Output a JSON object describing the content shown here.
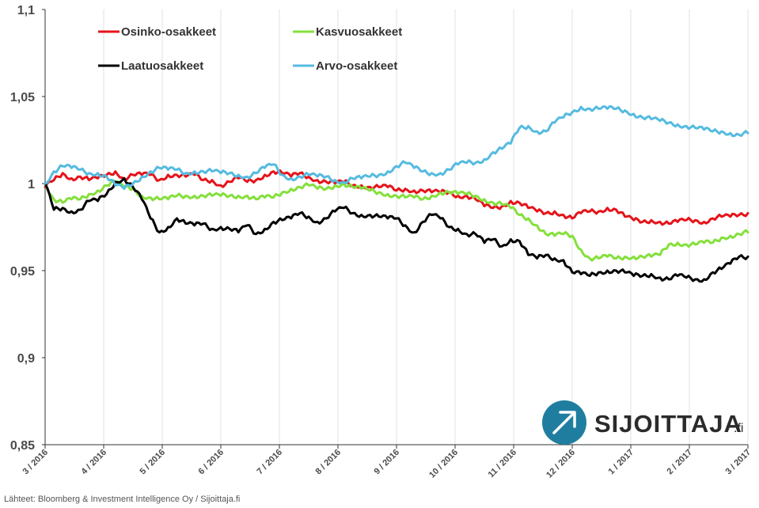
{
  "chart_data": {
    "type": "line",
    "title": "",
    "xlabel": "",
    "ylabel": "",
    "ylim": [
      0.85,
      1.1
    ],
    "y_ticks": [
      "1,1",
      "1,05",
      "1",
      "0,95",
      "0,9",
      "0,85"
    ],
    "y_tick_values": [
      1.1,
      1.05,
      1.0,
      0.95,
      0.9,
      0.85
    ],
    "x_ticks": [
      "3 / 2016",
      "4 / 2016",
      "5 / 2016",
      "6 / 2016",
      "7 / 2016",
      "8 / 2016",
      "9 / 2016",
      "10 / 2016",
      "11 / 2016",
      "12 / 2016",
      "1 / 2017",
      "2 / 2017",
      "3 / 2017"
    ],
    "x_tick_values": [
      0,
      1,
      2,
      3,
      4,
      5,
      6,
      7,
      8,
      9,
      10,
      11,
      12
    ],
    "xlim": [
      0,
      12
    ],
    "grid": "vertical",
    "legend_position": "top-left",
    "series": [
      {
        "name": "Osinko-osakkeet",
        "color": "#e5131a",
        "x": [
          0,
          0.15,
          0.3,
          0.45,
          0.6,
          0.75,
          0.9,
          1.05,
          1.2,
          1.35,
          1.5,
          1.65,
          1.8,
          1.95,
          2.1,
          2.25,
          2.4,
          2.55,
          2.7,
          2.85,
          3.0,
          3.15,
          3.3,
          3.45,
          3.6,
          3.75,
          3.9,
          4.05,
          4.2,
          4.35,
          4.5,
          4.65,
          4.8,
          4.95,
          5.1,
          5.25,
          5.4,
          5.55,
          5.7,
          5.85,
          6.0,
          6.15,
          6.3,
          6.45,
          6.6,
          6.75,
          6.9,
          7.05,
          7.2,
          7.35,
          7.5,
          7.65,
          7.8,
          7.95,
          8.1,
          8.25,
          8.4,
          8.55,
          8.7,
          8.85,
          9.0,
          9.15,
          9.3,
          9.45,
          9.6,
          9.75,
          9.9,
          10.05,
          10.2,
          10.35,
          10.5,
          10.65,
          10.8,
          10.95,
          11.1,
          11.25,
          11.4,
          11.55,
          11.7,
          11.85,
          12.0
        ],
        "values": [
          0.998,
          1.002,
          1.006,
          1.003,
          1.004,
          1.002,
          1.003,
          1.005,
          1.007,
          1.003,
          1.005,
          1.005,
          1.005,
          1.002,
          1.005,
          1.005,
          1.004,
          1.005,
          1.002,
          1.002,
          0.999,
          1.001,
          1.003,
          1.001,
          1.002,
          1.005,
          1.007,
          1.006,
          1.004,
          1.006,
          1.004,
          1.002,
          1.001,
          1.0,
          1.001,
          0.999,
          0.999,
          0.998,
          0.998,
          0.998,
          0.996,
          0.997,
          0.996,
          0.996,
          0.995,
          0.995,
          0.995,
          0.993,
          0.993,
          0.991,
          0.987,
          0.986,
          0.987,
          0.99,
          0.989,
          0.986,
          0.984,
          0.983,
          0.984,
          0.982,
          0.98,
          0.983,
          0.984,
          0.984,
          0.986,
          0.985,
          0.981,
          0.979,
          0.978,
          0.979,
          0.978,
          0.977,
          0.978,
          0.979,
          0.979,
          0.978,
          0.98,
          0.981,
          0.981,
          0.982,
          0.983
        ]
      },
      {
        "name": "Kasvuosakkeet",
        "color": "#84e03c",
        "x": [
          0,
          0.15,
          0.3,
          0.45,
          0.6,
          0.75,
          0.9,
          1.05,
          1.2,
          1.35,
          1.5,
          1.65,
          1.8,
          1.95,
          2.1,
          2.25,
          2.4,
          2.55,
          2.7,
          2.85,
          3.0,
          3.15,
          3.3,
          3.45,
          3.6,
          3.75,
          3.9,
          4.05,
          4.2,
          4.35,
          4.5,
          4.65,
          4.8,
          4.95,
          5.1,
          5.25,
          5.4,
          5.55,
          5.7,
          5.85,
          6.0,
          6.15,
          6.3,
          6.45,
          6.6,
          6.75,
          6.9,
          7.05,
          7.2,
          7.35,
          7.5,
          7.65,
          7.8,
          7.95,
          8.1,
          8.25,
          8.4,
          8.55,
          8.7,
          8.85,
          9.0,
          9.15,
          9.3,
          9.45,
          9.6,
          9.75,
          9.9,
          10.05,
          10.2,
          10.35,
          10.5,
          10.65,
          10.8,
          10.95,
          11.1,
          11.25,
          11.4,
          11.55,
          11.7,
          11.85,
          12.0
        ],
        "values": [
          1.0,
          0.991,
          0.989,
          0.991,
          0.991,
          0.994,
          0.996,
          0.999,
          1.001,
          0.998,
          0.997,
          0.993,
          0.992,
          0.991,
          0.991,
          0.993,
          0.993,
          0.993,
          0.993,
          0.993,
          0.993,
          0.993,
          0.993,
          0.993,
          0.991,
          0.992,
          0.992,
          0.995,
          0.997,
          0.998,
          0.999,
          0.997,
          0.997,
          0.999,
          1.0,
          0.998,
          0.997,
          0.996,
          0.995,
          0.994,
          0.993,
          0.992,
          0.992,
          0.991,
          0.993,
          0.995,
          0.995,
          0.994,
          0.994,
          0.993,
          0.991,
          0.989,
          0.988,
          0.986,
          0.982,
          0.98,
          0.976,
          0.971,
          0.97,
          0.971,
          0.97,
          0.962,
          0.957,
          0.957,
          0.958,
          0.957,
          0.958,
          0.958,
          0.958,
          0.958,
          0.959,
          0.965,
          0.966,
          0.965,
          0.965,
          0.966,
          0.966,
          0.969,
          0.97,
          0.971,
          0.972
        ]
      },
      {
        "name": "Laatuosakkeet",
        "color": "#000000",
        "x": [
          0,
          0.15,
          0.3,
          0.45,
          0.6,
          0.75,
          0.9,
          1.05,
          1.2,
          1.35,
          1.5,
          1.65,
          1.8,
          1.95,
          2.1,
          2.25,
          2.4,
          2.55,
          2.7,
          2.85,
          3.0,
          3.15,
          3.3,
          3.45,
          3.6,
          3.75,
          3.9,
          4.05,
          4.2,
          4.35,
          4.5,
          4.65,
          4.8,
          4.95,
          5.1,
          5.25,
          5.4,
          5.55,
          5.7,
          5.85,
          6.0,
          6.15,
          6.3,
          6.45,
          6.6,
          6.75,
          6.9,
          7.05,
          7.2,
          7.35,
          7.5,
          7.65,
          7.8,
          7.95,
          8.1,
          8.25,
          8.4,
          8.55,
          8.7,
          8.85,
          9.0,
          9.15,
          9.3,
          9.45,
          9.6,
          9.75,
          9.9,
          10.05,
          10.2,
          10.35,
          10.5,
          10.65,
          10.8,
          10.95,
          11.1,
          11.25,
          11.4,
          11.55,
          11.7,
          11.85,
          12.0
        ],
        "values": [
          1.0,
          0.985,
          0.986,
          0.984,
          0.985,
          0.99,
          0.99,
          0.994,
          1.001,
          1.003,
          0.998,
          0.991,
          0.98,
          0.972,
          0.975,
          0.98,
          0.977,
          0.976,
          0.977,
          0.974,
          0.975,
          0.974,
          0.972,
          0.976,
          0.971,
          0.974,
          0.978,
          0.979,
          0.98,
          0.983,
          0.981,
          0.978,
          0.98,
          0.984,
          0.986,
          0.983,
          0.982,
          0.982,
          0.981,
          0.98,
          0.98,
          0.976,
          0.972,
          0.978,
          0.982,
          0.98,
          0.975,
          0.974,
          0.971,
          0.971,
          0.966,
          0.968,
          0.964,
          0.968,
          0.967,
          0.959,
          0.957,
          0.959,
          0.957,
          0.956,
          0.949,
          0.948,
          0.947,
          0.949,
          0.95,
          0.95,
          0.949,
          0.947,
          0.947,
          0.948,
          0.946,
          0.945,
          0.947,
          0.946,
          0.945,
          0.945,
          0.949,
          0.951,
          0.954,
          0.958,
          0.958
        ]
      },
      {
        "name": "Arvo-osakkeet",
        "color": "#55bbe0",
        "x": [
          0,
          0.15,
          0.3,
          0.45,
          0.6,
          0.75,
          0.9,
          1.05,
          1.2,
          1.35,
          1.5,
          1.65,
          1.8,
          1.95,
          2.1,
          2.25,
          2.4,
          2.55,
          2.7,
          2.85,
          3.0,
          3.15,
          3.3,
          3.45,
          3.6,
          3.75,
          3.9,
          4.05,
          4.2,
          4.35,
          4.5,
          4.65,
          4.8,
          4.95,
          5.1,
          5.25,
          5.4,
          5.55,
          5.7,
          5.85,
          6.0,
          6.15,
          6.3,
          6.45,
          6.6,
          6.75,
          6.9,
          7.05,
          7.2,
          7.35,
          7.5,
          7.65,
          7.8,
          7.95,
          8.1,
          8.25,
          8.4,
          8.55,
          8.7,
          8.85,
          9.0,
          9.15,
          9.3,
          9.45,
          9.6,
          9.75,
          9.9,
          10.05,
          10.2,
          10.35,
          10.5,
          10.65,
          10.8,
          10.95,
          11.1,
          11.25,
          11.4,
          11.55,
          11.7,
          11.85,
          12.0
        ],
        "values": [
          1.0,
          1.007,
          1.01,
          1.009,
          1.008,
          1.006,
          1.006,
          1.004,
          0.999,
          0.997,
          1.0,
          1.004,
          1.007,
          1.009,
          1.008,
          1.008,
          1.006,
          1.007,
          1.007,
          1.007,
          1.006,
          1.006,
          1.005,
          1.004,
          1.006,
          1.009,
          1.011,
          1.005,
          1.003,
          1.004,
          1.005,
          1.004,
          1.004,
          1.002,
          1.001,
          1.003,
          1.003,
          1.004,
          1.005,
          1.007,
          1.01,
          1.012,
          1.009,
          1.007,
          1.006,
          1.006,
          1.008,
          1.011,
          1.012,
          1.012,
          1.014,
          1.018,
          1.02,
          1.023,
          1.032,
          1.033,
          1.03,
          1.03,
          1.035,
          1.038,
          1.041,
          1.044,
          1.043,
          1.043,
          1.043,
          1.043,
          1.042,
          1.04,
          1.038,
          1.037,
          1.036,
          1.035,
          1.034,
          1.033,
          1.032,
          1.031,
          1.03,
          1.03,
          1.029,
          1.028,
          1.029
        ]
      }
    ]
  },
  "source_text": "Lähteet: Bloomberg & Investment Intelligence Oy / Sijoittaja.fi",
  "logo": {
    "name": "SIJOITTAJA",
    "suffix": ".fi",
    "circle_color": "#1f7ea0"
  }
}
